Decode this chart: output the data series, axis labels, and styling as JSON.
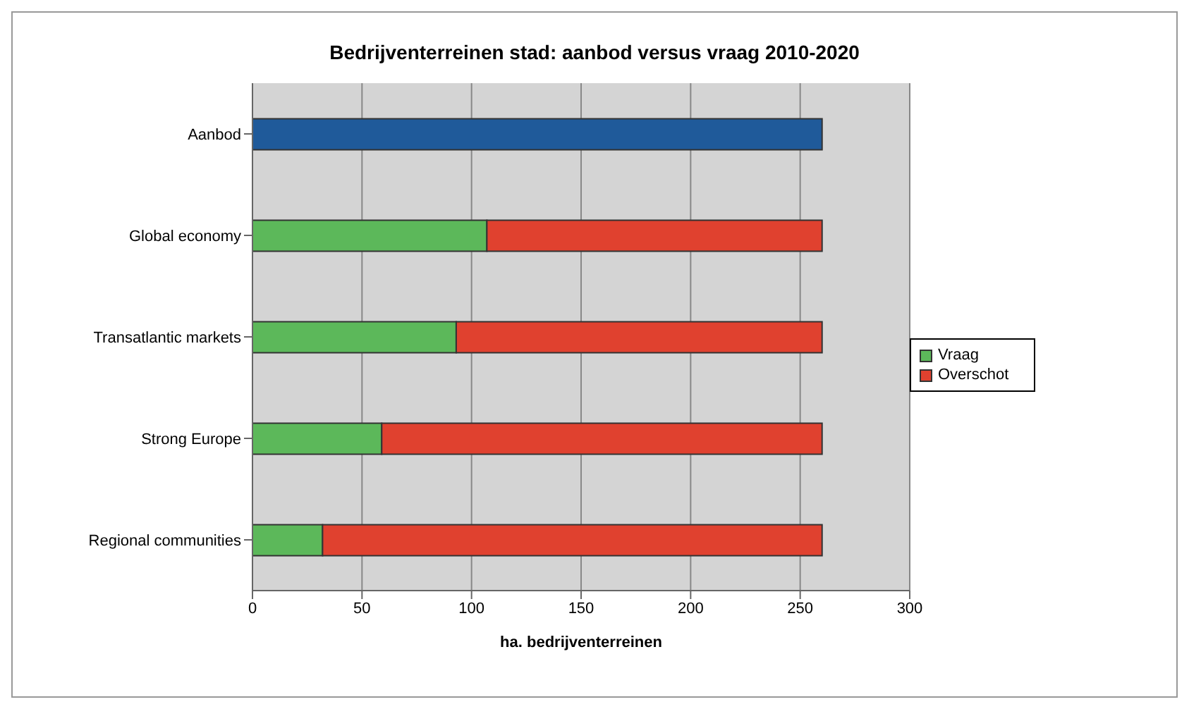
{
  "chart_data": {
    "type": "bar",
    "orientation": "horizontal",
    "stacked": true,
    "title": "Bedrijventerreinen stad: aanbod versus vraag 2010-2020",
    "xlabel": "ha. bedrijventerreinen",
    "categories": [
      "Aanbod",
      "Global economy",
      "Transatlantic markets",
      "Strong Europe",
      "Regional communities"
    ],
    "series": [
      {
        "color": "#1f5a9a",
        "values": [
          260,
          null,
          null,
          null,
          null
        ]
      },
      {
        "name": "Vraag",
        "color": "#5cb85a",
        "values": [
          null,
          107,
          93,
          59,
          32
        ]
      },
      {
        "name": "Overschot",
        "color": "#e0412f",
        "values": [
          null,
          153,
          167,
          201,
          228
        ]
      }
    ],
    "xlim": [
      0,
      300
    ],
    "xticks": [
      0,
      50,
      100,
      150,
      200,
      250,
      300
    ],
    "grid": "x",
    "legend": "right"
  }
}
